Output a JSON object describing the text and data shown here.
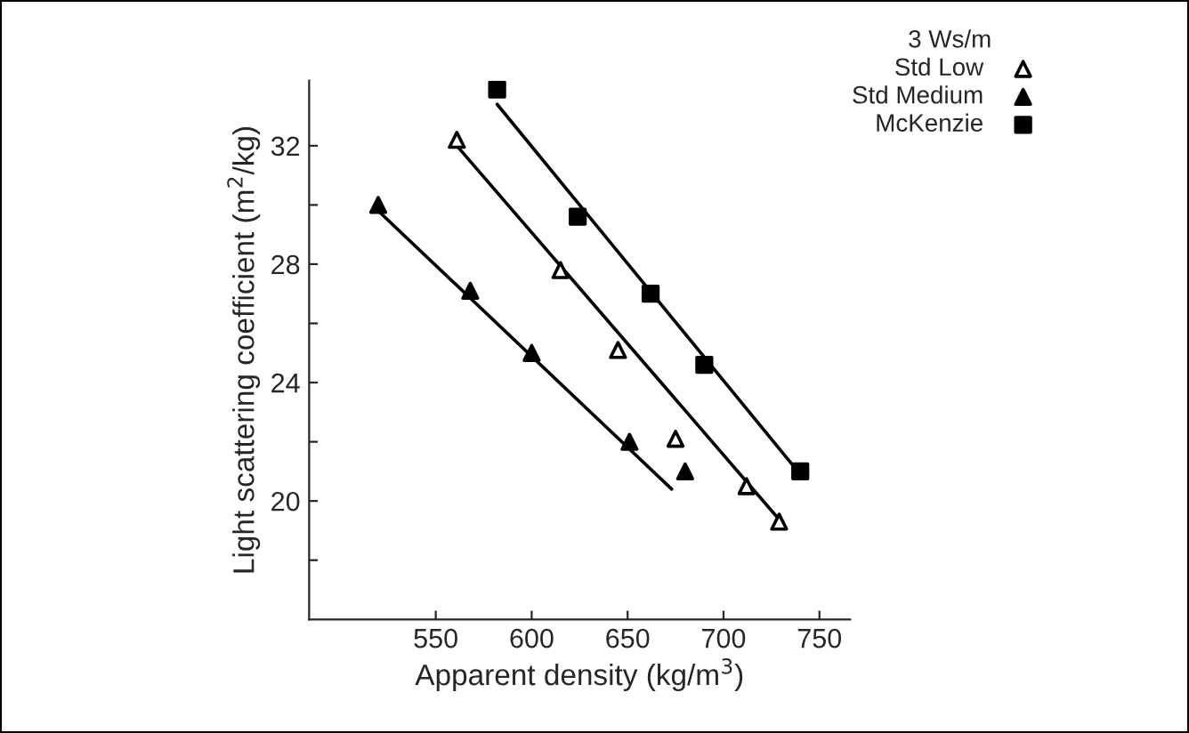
{
  "chart_data": {
    "type": "scatter",
    "xlabel": "Apparent density (kg/m$^{3}$)",
    "ylabel": "Light scattering coefficient (m$^{2}$/kg)",
    "legend_title": "3 Ws/m",
    "legend": "top right",
    "grid": false,
    "xlim": [
      484,
      766
    ],
    "ylim": [
      16,
      34.2
    ],
    "xticks": [
      550,
      600,
      650,
      700,
      750
    ],
    "yticks": [
      {
        "value": 18,
        "label": null
      },
      20,
      {
        "value": 22,
        "label": null
      },
      24,
      {
        "value": 26,
        "label": null
      },
      28,
      {
        "value": 30,
        "label": null
      },
      32
    ],
    "series": [
      {
        "name": "Std Low",
        "marker": "triangle",
        "color": "#ffffff",
        "x": [
          561,
          615,
          645,
          675,
          712,
          729
        ],
        "values": [
          32.2,
          27.8,
          25.1,
          22.1,
          20.5,
          19.3
        ]
      },
      {
        "name": "Std Medium",
        "marker": "triangle",
        "color": "#000000",
        "x": [
          520,
          568,
          600,
          651,
          680
        ],
        "values": [
          30.0,
          27.1,
          25.0,
          22.0,
          21.0
        ]
      },
      {
        "name": "McKenzie",
        "marker": "square",
        "color": "#000000",
        "x": [
          582,
          624,
          662,
          690,
          740
        ],
        "values": [
          33.9,
          29.6,
          27.0,
          24.6,
          21.0
        ]
      },
      {
        "type": "line",
        "color": "#000000",
        "x": [
          561,
          730
        ],
        "values": [
          32.0,
          19.3
        ]
      },
      {
        "type": "line",
        "color": "#000000",
        "x": [
          520,
          673
        ],
        "values": [
          29.8,
          20.4
        ]
      },
      {
        "type": "line",
        "color": "#000000",
        "x": [
          582,
          740
        ],
        "values": [
          33.4,
          20.9
        ]
      }
    ]
  }
}
